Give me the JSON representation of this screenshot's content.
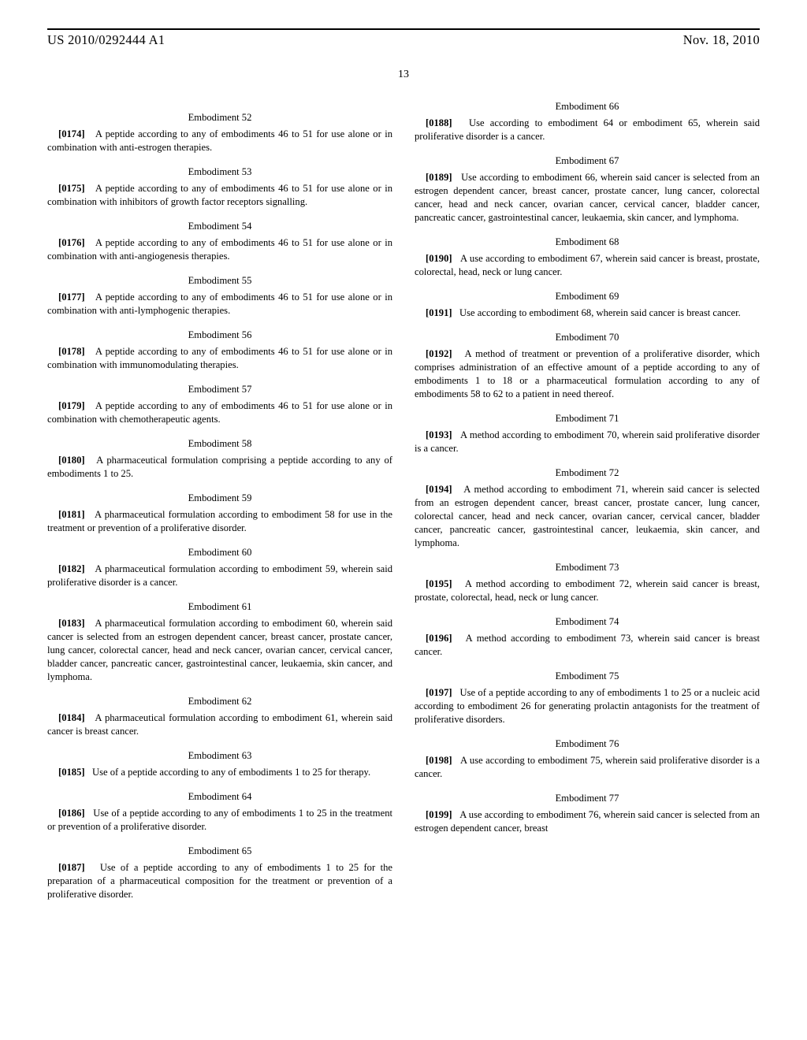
{
  "header": {
    "pub_number": "US 2010/0292444 A1",
    "pub_date": "Nov. 18, 2010"
  },
  "page_number": "13",
  "embodiments": [
    {
      "title": "Embodiment 52",
      "num": "[0174]",
      "text": "A peptide according to any of embodiments 46 to 51 for use alone or in combination with anti-estrogen therapies."
    },
    {
      "title": "Embodiment 53",
      "num": "[0175]",
      "text": "A peptide according to any of embodiments 46 to 51 for use alone or in combination with inhibitors of growth factor receptors signalling."
    },
    {
      "title": "Embodiment 54",
      "num": "[0176]",
      "text": "A peptide according to any of embodiments 46 to 51 for use alone or in combination with anti-angiogenesis therapies."
    },
    {
      "title": "Embodiment 55",
      "num": "[0177]",
      "text": "A peptide according to any of embodiments 46 to 51 for use alone or in combination with anti-lymphogenic therapies."
    },
    {
      "title": "Embodiment 56",
      "num": "[0178]",
      "text": "A peptide according to any of embodiments 46 to 51 for use alone or in combination with immunomodulating therapies."
    },
    {
      "title": "Embodiment 57",
      "num": "[0179]",
      "text": "A peptide according to any of embodiments 46 to 51 for use alone or in combination with chemotherapeutic agents."
    },
    {
      "title": "Embodiment 58",
      "num": "[0180]",
      "text": "A pharmaceutical formulation comprising a peptide according to any of embodiments 1 to 25."
    },
    {
      "title": "Embodiment 59",
      "num": "[0181]",
      "text": "A pharmaceutical formulation according to embodiment 58 for use in the treatment or prevention of a proliferative disorder."
    },
    {
      "title": "Embodiment 60",
      "num": "[0182]",
      "text": "A pharmaceutical formulation according to embodiment 59, wherein said proliferative disorder is a cancer."
    },
    {
      "title": "Embodiment 61",
      "num": "[0183]",
      "text": "A pharmaceutical formulation according to embodiment 60, wherein said cancer is selected from an estrogen dependent cancer, breast cancer, prostate cancer, lung cancer, colorectal cancer, head and neck cancer, ovarian cancer, cervical cancer, bladder cancer, pancreatic cancer, gastrointestinal cancer, leukaemia, skin cancer, and lymphoma."
    },
    {
      "title": "Embodiment 62",
      "num": "[0184]",
      "text": "A pharmaceutical formulation according to embodiment 61, wherein said cancer is breast cancer."
    },
    {
      "title": "Embodiment 63",
      "num": "[0185]",
      "text": "Use of a peptide according to any of embodiments 1 to 25 for therapy."
    },
    {
      "title": "Embodiment 64",
      "num": "[0186]",
      "text": "Use of a peptide according to any of embodiments 1 to 25 in the treatment or prevention of a proliferative disorder."
    },
    {
      "title": "Embodiment 65",
      "num": "[0187]",
      "text": "Use of a peptide according to any of embodiments 1 to 25 for the preparation of a pharmaceutical composition for the treatment or prevention of a proliferative disorder."
    },
    {
      "title": "Embodiment 66",
      "num": "[0188]",
      "text": "Use according to embodiment 64 or embodiment 65, wherein said proliferative disorder is a cancer."
    },
    {
      "title": "Embodiment 67",
      "num": "[0189]",
      "text": "Use according to embodiment 66, wherein said cancer is selected from an estrogen dependent cancer, breast cancer, prostate cancer, lung cancer, colorectal cancer, head and neck cancer, ovarian cancer, cervical cancer, bladder cancer, pancreatic cancer, gastrointestinal cancer, leukaemia, skin cancer, and lymphoma."
    },
    {
      "title": "Embodiment 68",
      "num": "[0190]",
      "text": "A use according to embodiment 67, wherein said cancer is breast, prostate, colorectal, head, neck or lung cancer."
    },
    {
      "title": "Embodiment 69",
      "num": "[0191]",
      "text": "Use according to embodiment 68, wherein said cancer is breast cancer."
    },
    {
      "title": "Embodiment 70",
      "num": "[0192]",
      "text": "A method of treatment or prevention of a proliferative disorder, which comprises administration of an effective amount of a peptide according to any of embodiments 1 to 18 or a pharmaceutical formulation according to any of embodiments 58 to 62 to a patient in need thereof."
    },
    {
      "title": "Embodiment 71",
      "num": "[0193]",
      "text": "A method according to embodiment 70, wherein said proliferative disorder is a cancer."
    },
    {
      "title": "Embodiment 72",
      "num": "[0194]",
      "text": "A method according to embodiment 71, wherein said cancer is selected from an estrogen dependent cancer, breast cancer, prostate cancer, lung cancer, colorectal cancer, head and neck cancer, ovarian cancer, cervical cancer, bladder cancer, pancreatic cancer, gastrointestinal cancer, leukaemia, skin cancer, and lymphoma."
    },
    {
      "title": "Embodiment 73",
      "num": "[0195]",
      "text": "A method according to embodiment 72, wherein said cancer is breast, prostate, colorectal, head, neck or lung cancer."
    },
    {
      "title": "Embodiment 74",
      "num": "[0196]",
      "text": "A method according to embodiment 73, wherein said cancer is breast cancer."
    },
    {
      "title": "Embodiment 75",
      "num": "[0197]",
      "text": "Use of a peptide according to any of embodiments 1 to 25 or a nucleic acid according to embodiment 26 for generating prolactin antagonists for the treatment of proliferative disorders."
    },
    {
      "title": "Embodiment 76",
      "num": "[0198]",
      "text": "A use according to embodiment 75, wherein said proliferative disorder is a cancer."
    },
    {
      "title": "Embodiment 77",
      "num": "[0199]",
      "text": "A use according to embodiment 76, wherein said cancer is selected from an estrogen dependent cancer, breast"
    }
  ]
}
